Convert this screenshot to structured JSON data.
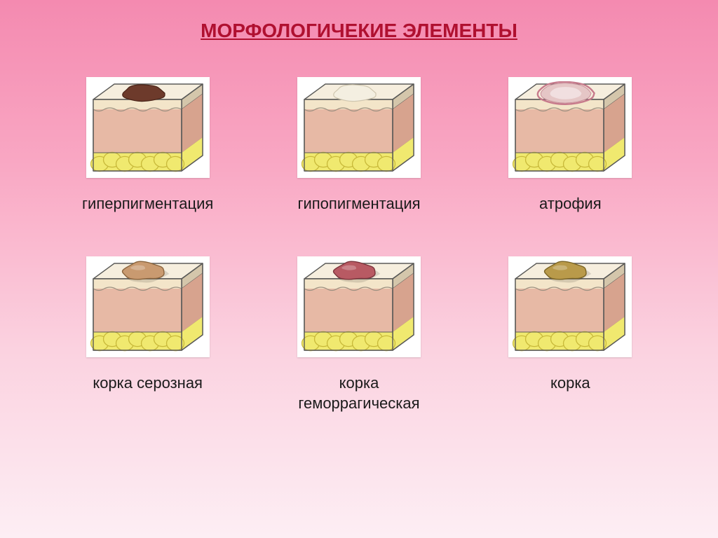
{
  "title": {
    "text": "МОРФОЛОГИЧЕКИЕ ЭЛЕМЕНТЫ",
    "color": "#b01030",
    "fontsize": 28
  },
  "caption_fontsize": 22,
  "caption_color": "#1a1a1a",
  "cube": {
    "width": 164,
    "height": 132,
    "outline": "#5a5a58",
    "top_light": "#f6eede",
    "top_dark": "#e7d9bd",
    "side_shadow": "#d4c6ab",
    "dermis_light": "#e7b9a5",
    "dermis_dark": "#d7a38e",
    "epidermis": "#f3e5c9",
    "fat": "#f0e96f",
    "fat_line": "#c8b93a",
    "wave_line": "#9c9080"
  },
  "items": [
    {
      "label": "гиперпигментация",
      "lesion": "hyper"
    },
    {
      "label": "гипопигментация",
      "lesion": "hypo"
    },
    {
      "label": "атрофия",
      "lesion": "atrophy"
    },
    {
      "label": "корка серозная",
      "lesion": "crust_serous"
    },
    {
      "label": "корка\nгеморрагическая",
      "lesion": "crust_hemo"
    },
    {
      "label": "корка",
      "lesion": "crust"
    }
  ],
  "lesions": {
    "hyper": {
      "type": "flat",
      "fill": "#6d3a2b",
      "stroke": "#4a2419",
      "rim": null
    },
    "hypo": {
      "type": "flat",
      "fill": "#f4efe1",
      "stroke": "#cfc6af",
      "rim": null
    },
    "atrophy": {
      "type": "depress",
      "fill": "#e5c6c6",
      "stroke": "#c98f9a",
      "rim": "#c77a8c"
    },
    "crust_serous": {
      "type": "raised",
      "fill": "#c99a70",
      "stroke": "#8a643d",
      "rim": null
    },
    "crust_hemo": {
      "type": "raised",
      "fill": "#b85a63",
      "stroke": "#7b343c",
      "rim": null
    },
    "crust": {
      "type": "raised",
      "fill": "#b99a4a",
      "stroke": "#7a6425",
      "rim": null
    }
  }
}
